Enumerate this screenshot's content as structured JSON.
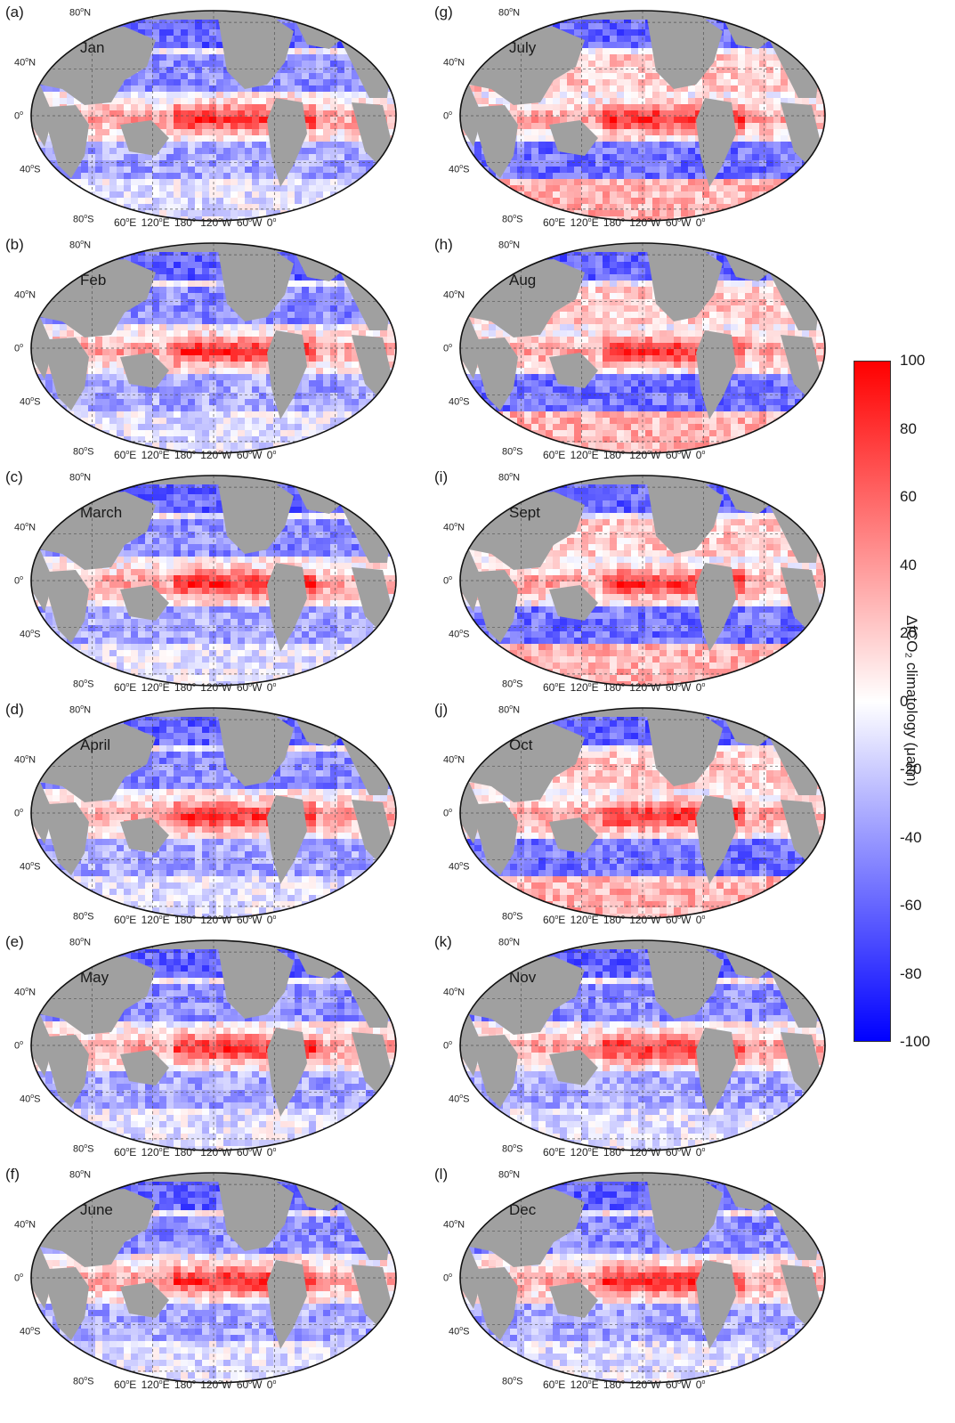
{
  "panels": [
    {
      "letter": "(a)",
      "month": "Jan"
    },
    {
      "letter": "(b)",
      "month": "Feb"
    },
    {
      "letter": "(c)",
      "month": "March"
    },
    {
      "letter": "(d)",
      "month": "April"
    },
    {
      "letter": "(e)",
      "month": "May"
    },
    {
      "letter": "(f)",
      "month": "June"
    },
    {
      "letter": "(g)",
      "month": "July"
    },
    {
      "letter": "(h)",
      "month": "Aug"
    },
    {
      "letter": "(i)",
      "month": "Sept"
    },
    {
      "letter": "(j)",
      "month": "Oct"
    },
    {
      "letter": "(k)",
      "month": "Nov"
    },
    {
      "letter": "(l)",
      "month": "Dec"
    }
  ],
  "latitude_labels": {
    "n80": "80",
    "n40": "40",
    "eq": "0",
    "s40": "40",
    "s80": "80",
    "north": "N",
    "south": "S",
    "degree": "o"
  },
  "longitude_labels": [
    "60",
    "120",
    "180",
    "120",
    "60",
    "0"
  ],
  "longitude_suffix": [
    "E",
    "E",
    "",
    "W",
    "W",
    ""
  ],
  "colorbar": {
    "label": "ΔfCO₂ climatology (μatm)",
    "ticks": [
      "100",
      "80",
      "60",
      "40",
      "20",
      "0",
      "-20",
      "-40",
      "-60",
      "-80",
      "-100"
    ],
    "min": -100,
    "max": 100,
    "colors": {
      "high": "#ff0000",
      "mid": "#ffffff",
      "low": "#0000ff"
    }
  },
  "colors": {
    "land": "#a0a0a0",
    "outline": "#111111",
    "grid": "#555555"
  }
}
